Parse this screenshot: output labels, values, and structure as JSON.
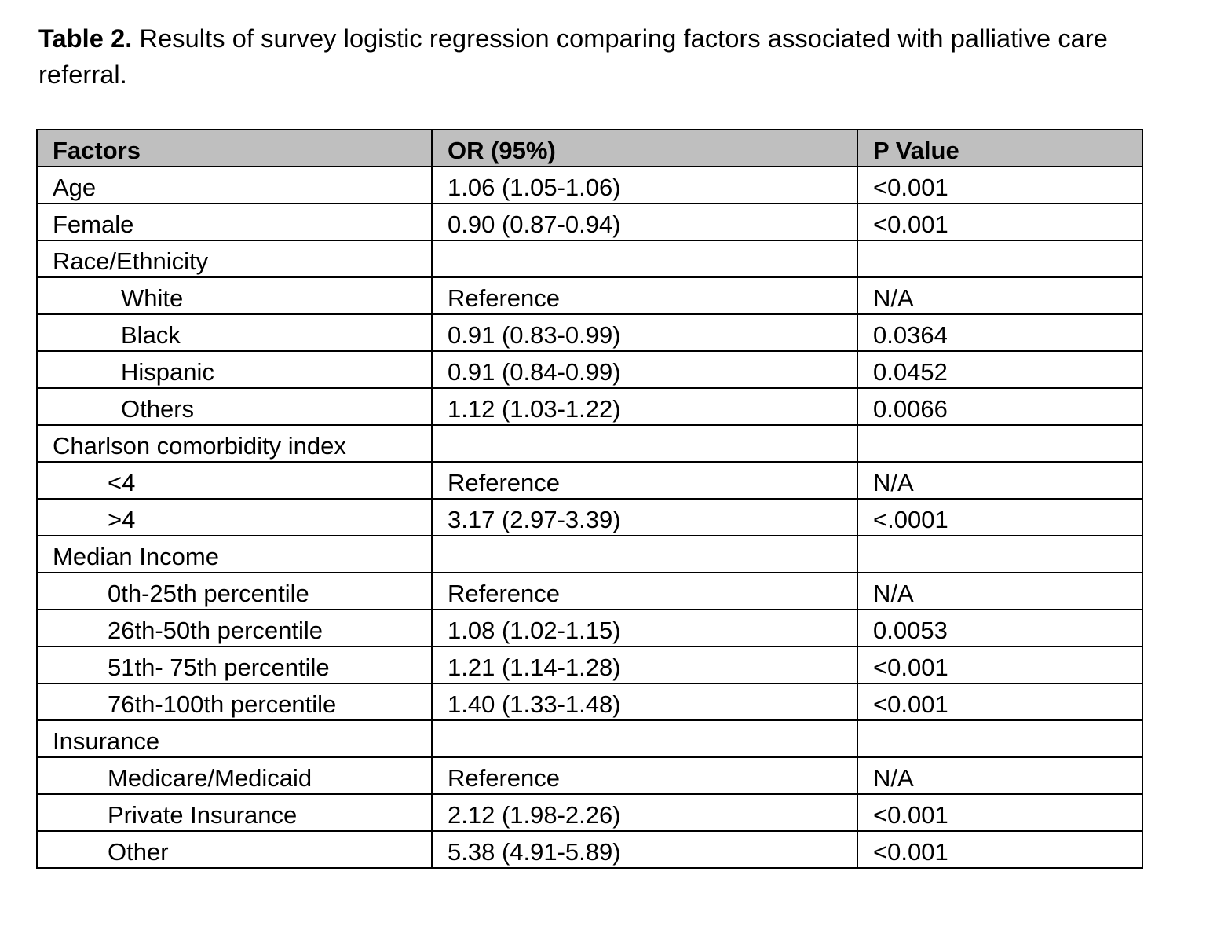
{
  "caption": {
    "label": "Table 2.",
    "text": " Results of survey logistic regression comparing factors associated with palliative care referral."
  },
  "table": {
    "headers": [
      "Factors",
      "OR (95%)",
      "P Value"
    ],
    "rows": [
      {
        "factor": "Age",
        "or": "1.06 (1.05-1.06)",
        "p": "<0.001"
      },
      {
        "factor": "Female",
        "or": "0.90 (0.87-0.94)",
        "p": "<0.001"
      },
      {
        "factor": "Race/Ethnicity",
        "or": "",
        "p": ""
      },
      {
        "factor": "White",
        "or": "Reference",
        "p": "N/A"
      },
      {
        "factor": "Black",
        "or": "0.91 (0.83-0.99)",
        "p": "0.0364"
      },
      {
        "factor": "Hispanic",
        "or": "0.91 (0.84-0.99)",
        "p": "0.0452"
      },
      {
        "factor": "Others",
        "or": "1.12 (1.03-1.22)",
        "p": "0.0066"
      },
      {
        "factor": "Charlson comorbidity index",
        "or": "",
        "p": ""
      },
      {
        "factor": "<4",
        "or": "Reference",
        "p": "N/A"
      },
      {
        "factor": ">4",
        "or": "3.17 (2.97-3.39)",
        "p": "<.0001"
      },
      {
        "factor": "Median Income",
        "or": "",
        "p": ""
      },
      {
        "factor": "0th-25th percentile",
        "or": "Reference",
        "p": "N/A"
      },
      {
        "factor": "26th-50th percentile",
        "or": "1.08 (1.02-1.15)",
        "p": "0.0053"
      },
      {
        "factor": "51th- 75th percentile",
        "or": "1.21 (1.14-1.28)",
        "p": "<0.001"
      },
      {
        "factor": "76th-100th percentile",
        "or": "1.40 (1.33-1.48)",
        "p": "<0.001"
      },
      {
        "factor": "Insurance",
        "or": "",
        "p": ""
      },
      {
        "factor": "Medicare/Medicaid",
        "or": "Reference",
        "p": "N/A"
      },
      {
        "factor": "Private Insurance",
        "or": "2.12 (1.98-2.26)",
        "p": "<0.001"
      },
      {
        "factor": "Other",
        "or": "5.38 (4.91-5.89)",
        "p": "<0.001"
      }
    ]
  }
}
